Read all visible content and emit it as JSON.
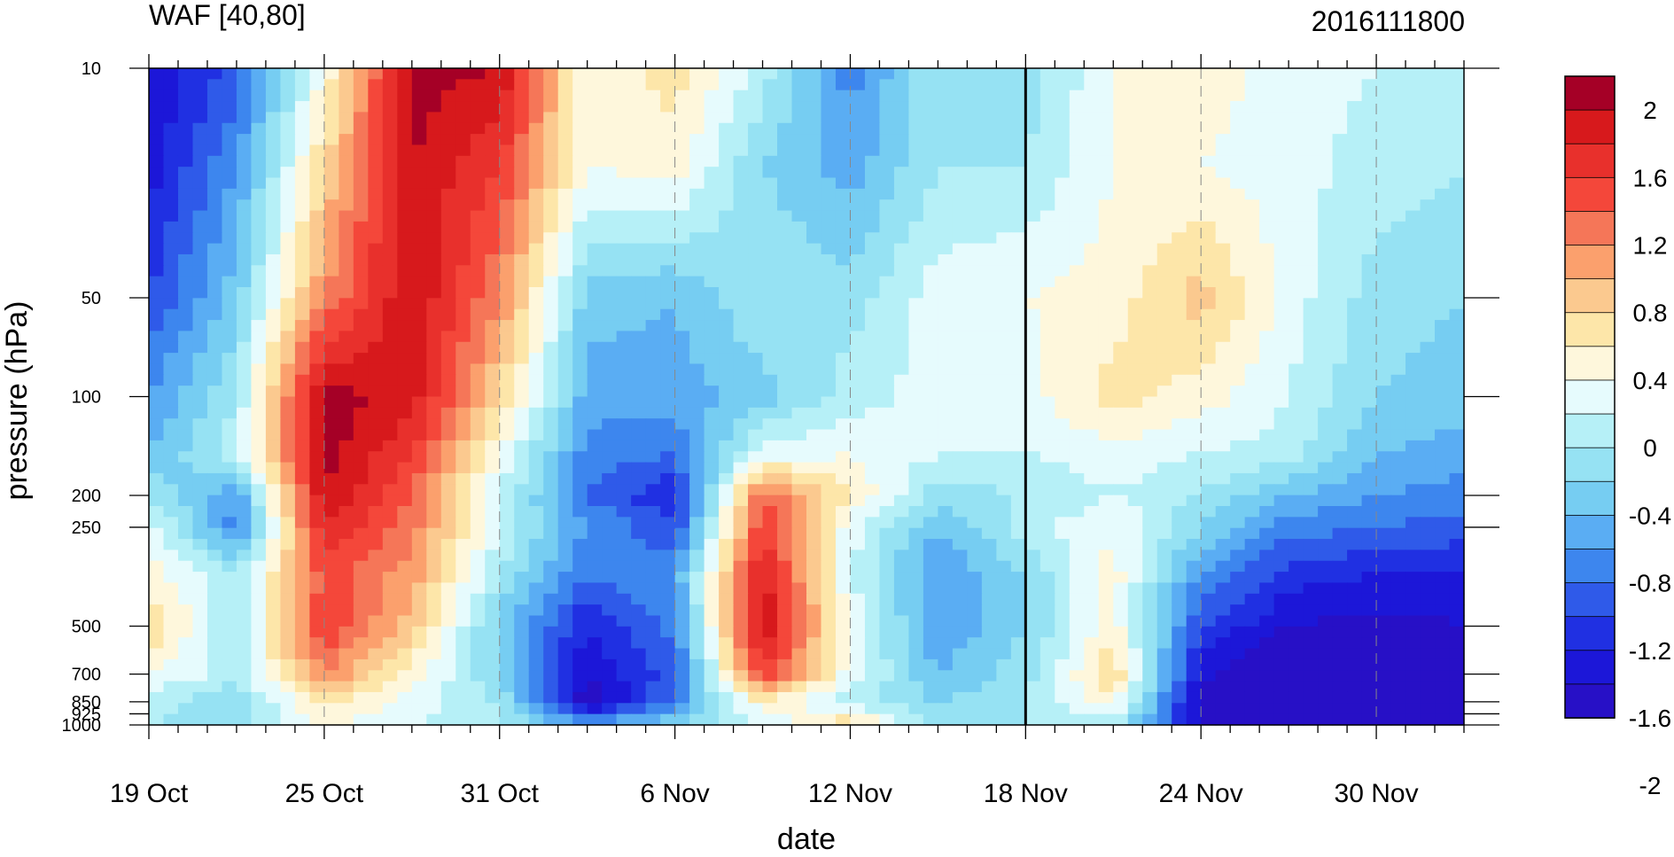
{
  "chart_data": {
    "type": "heatmap",
    "title": "WAF [40,80]",
    "right_title": "2016111800",
    "xlabel": "date",
    "ylabel": "pressure (hPa)",
    "x_tick_labels": [
      "19 Oct",
      "25 Oct",
      "31 Oct",
      "6 Nov",
      "12 Nov",
      "18 Nov",
      "24 Nov",
      "30 Nov"
    ],
    "x_tick_days": [
      0,
      6,
      12,
      18,
      24,
      30,
      36,
      42
    ],
    "x_range_days": [
      0,
      45
    ],
    "marker_day": 30,
    "y_tick_labels": [
      "10",
      "50",
      "100",
      "200",
      "250",
      "500",
      "700",
      "850",
      "925",
      "1000"
    ],
    "y_tick_values": [
      10,
      50,
      100,
      200,
      250,
      500,
      700,
      850,
      925,
      1000
    ],
    "ylim": [
      1000,
      10
    ],
    "y_scale": "log",
    "colorbar": {
      "label_values": [
        "2",
        "1.6",
        "1.2",
        "0.8",
        "0.4",
        "0",
        "-0.4",
        "-0.8",
        "-1.2",
        "-1.6",
        "-2"
      ],
      "colors": [
        "#a50026",
        "#d7191c",
        "#e8302c",
        "#f4473a",
        "#f57658",
        "#fba06d",
        "#fbc98f",
        "#fde6a9",
        "#fef7dc",
        "#e6fbfd",
        "#b6f0f7",
        "#96e2f3",
        "#76cdf2",
        "#5aadf3",
        "#3d86ee",
        "#2f5ae9",
        "#2030e2",
        "#1c17d8",
        "#2710c6"
      ]
    },
    "cells": {
      "x_days": [
        0,
        3,
        6,
        9,
        12,
        15,
        18,
        21,
        24,
        27,
        30,
        33,
        36,
        39,
        42,
        45
      ],
      "y_levels": [
        10,
        20,
        50,
        100,
        150,
        200,
        250,
        350,
        500,
        700,
        850,
        1000
      ],
      "values": [
        [
          -1.4,
          -0.9,
          0.4,
          2.1,
          2.0,
          0.4,
          0.7,
          0.1,
          -0.7,
          0.0,
          -0.1,
          0.4,
          0.5,
          0.3,
          0.2,
          0.1
        ],
        [
          -1.3,
          -0.6,
          0.8,
          2.0,
          1.6,
          0.4,
          0.5,
          -0.2,
          -0.5,
          0.0,
          0.0,
          0.4,
          0.4,
          0.3,
          0.1,
          0.0
        ],
        [
          -1.0,
          -0.3,
          1.2,
          2.0,
          1.2,
          -0.3,
          -0.4,
          0.0,
          -0.1,
          0.3,
          0.4,
          0.5,
          0.9,
          0.3,
          -0.1,
          -0.2
        ],
        [
          -0.6,
          0.0,
          2.1,
          1.9,
          0.8,
          -0.5,
          -0.5,
          -0.3,
          0.1,
          0.3,
          0.3,
          0.7,
          0.5,
          0.2,
          -0.2,
          -0.3
        ],
        [
          -0.4,
          0.1,
          2.1,
          1.6,
          0.4,
          -0.7,
          -0.8,
          0.3,
          0.4,
          0.2,
          0.2,
          0.3,
          0.2,
          0.1,
          -0.4,
          -0.5
        ],
        [
          0.0,
          -0.6,
          2.0,
          1.4,
          0.2,
          -0.8,
          -1.2,
          1.4,
          0.6,
          -0.1,
          0.0,
          0.2,
          0.0,
          -0.4,
          -0.6,
          -0.7
        ],
        [
          0.3,
          -0.7,
          1.8,
          1.3,
          0.2,
          -0.6,
          -1.0,
          1.6,
          0.3,
          -0.4,
          0.1,
          0.4,
          -0.2,
          -0.7,
          -0.8,
          -0.9
        ],
        [
          0.5,
          0.0,
          1.5,
          1.1,
          0.0,
          -0.8,
          -0.6,
          1.9,
          0.2,
          -0.6,
          -0.2,
          0.5,
          -0.6,
          -1.1,
          -1.2,
          -1.2
        ],
        [
          0.8,
          0.0,
          1.6,
          0.9,
          -0.3,
          -1.2,
          -0.7,
          2.0,
          0.4,
          -0.6,
          -0.2,
          0.5,
          -1.0,
          -1.4,
          -1.5,
          -1.4
        ],
        [
          0.4,
          0.1,
          1.2,
          0.5,
          -0.2,
          -1.4,
          -0.9,
          1.6,
          0.3,
          -0.4,
          -0.1,
          0.8,
          -1.3,
          -1.8,
          -1.8,
          -1.6
        ],
        [
          0.1,
          -0.2,
          0.7,
          0.3,
          0.0,
          -1.6,
          -0.7,
          0.6,
          0.1,
          -0.2,
          0.0,
          0.5,
          -1.5,
          -2.1,
          -2.0,
          -1.8
        ],
        [
          0.0,
          -0.1,
          0.4,
          0.2,
          0.0,
          -0.5,
          -0.2,
          0.2,
          0.8,
          -0.1,
          0.0,
          0.1,
          -1.4,
          -1.9,
          -1.9,
          -1.6
        ]
      ]
    }
  }
}
